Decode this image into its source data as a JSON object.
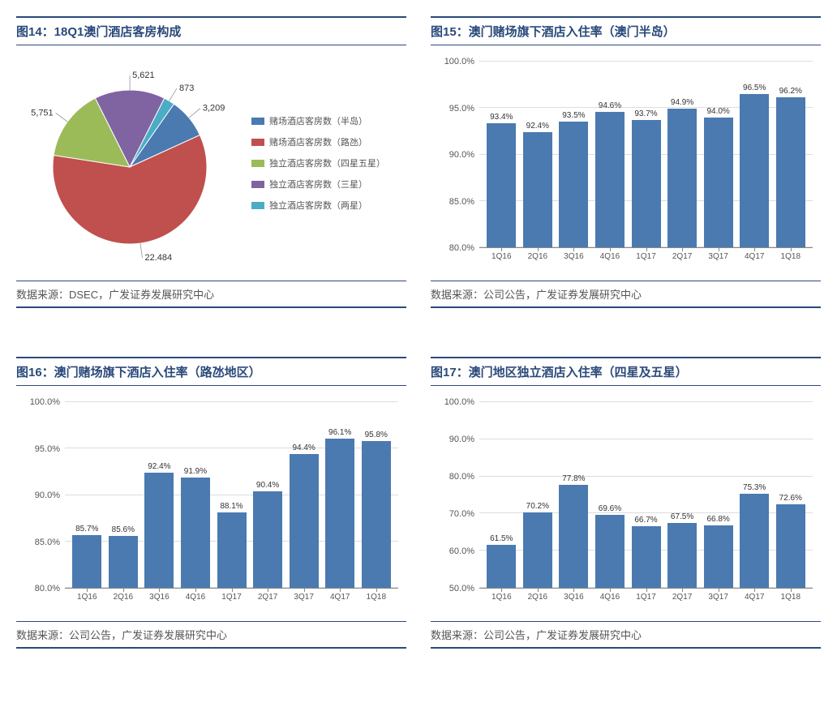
{
  "colors": {
    "title": "#2a4a7a",
    "bar": "#4a7ab0",
    "grid": "#dddddd",
    "axis": "#888888",
    "text": "#555555"
  },
  "panels": {
    "p14": {
      "title": "图14：18Q1澳门酒店客房构成",
      "source": "数据来源：DSEC，广发证券发展研究中心",
      "pie": {
        "slices": [
          {
            "label": "赌场酒店客房数（半岛）",
            "value": 3209,
            "display": "3,209",
            "color": "#4a7ab0"
          },
          {
            "label": "赌场酒店客房数（路氹）",
            "value": 22484,
            "display": "22,484",
            "color": "#c0504d"
          },
          {
            "label": "独立酒店客房数（四星五星）",
            "value": 5751,
            "display": "5,751",
            "color": "#9bbb59"
          },
          {
            "label": "独立酒店客房数（三星）",
            "value": 5621,
            "display": "5,621",
            "color": "#8064a2"
          },
          {
            "label": "独立酒店客房数（两星）",
            "value": 873,
            "display": "873",
            "color": "#4bacc6"
          }
        ],
        "start_angle_deg": -55
      }
    },
    "p15": {
      "title": "图15：澳门赌场旗下酒店入住率（澳门半岛）",
      "source": "数据来源：公司公告，广发证券发展研究中心",
      "bar": {
        "categories": [
          "1Q16",
          "2Q16",
          "3Q16",
          "4Q16",
          "1Q17",
          "2Q17",
          "3Q17",
          "4Q17",
          "1Q18"
        ],
        "values": [
          93.4,
          92.4,
          93.5,
          94.6,
          93.7,
          94.9,
          94.0,
          96.5,
          96.2
        ],
        "value_suffix": "%",
        "ylim": [
          80,
          100
        ],
        "ytick_step": 5,
        "ylabel_suffix": ".0%",
        "bar_color": "#4a7ab0",
        "grid_color": "#dddddd"
      }
    },
    "p16": {
      "title": "图16：澳门赌场旗下酒店入住率（路氹地区）",
      "source": "数据来源：公司公告，广发证券发展研究中心",
      "bar": {
        "categories": [
          "1Q16",
          "2Q16",
          "3Q16",
          "4Q16",
          "1Q17",
          "2Q17",
          "3Q17",
          "4Q17",
          "1Q18"
        ],
        "values": [
          85.7,
          85.6,
          92.4,
          91.9,
          88.1,
          90.4,
          94.4,
          96.1,
          95.8
        ],
        "value_suffix": "%",
        "ylim": [
          80,
          100
        ],
        "ytick_step": 5,
        "ylabel_suffix": ".0%",
        "bar_color": "#4a7ab0",
        "grid_color": "#dddddd"
      }
    },
    "p17": {
      "title": "图17：澳门地区独立酒店入住率（四星及五星）",
      "source": "数据来源：公司公告，广发证券发展研究中心",
      "bar": {
        "categories": [
          "1Q16",
          "2Q16",
          "3Q16",
          "4Q16",
          "1Q17",
          "2Q17",
          "3Q17",
          "4Q17",
          "1Q18"
        ],
        "values": [
          61.5,
          70.2,
          77.8,
          69.6,
          66.7,
          67.5,
          66.8,
          75.3,
          72.6
        ],
        "value_suffix": "%",
        "ylim": [
          50,
          100
        ],
        "ytick_step": 10,
        "ylabel_suffix": ".0%",
        "bar_color": "#4a7ab0",
        "grid_color": "#dddddd"
      }
    }
  }
}
